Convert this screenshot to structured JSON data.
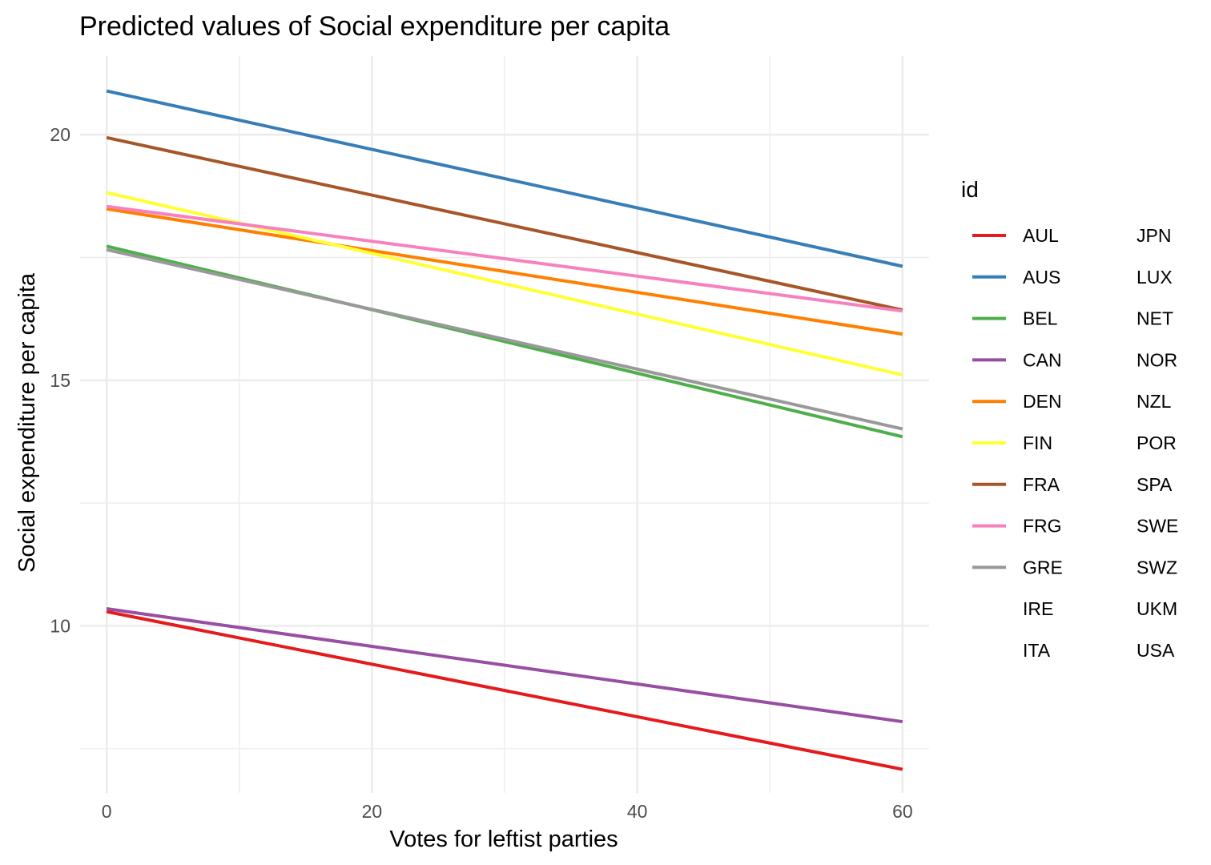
{
  "chart_data": {
    "type": "line",
    "title": "Predicted values of Social expenditure per capita",
    "xlabel": "Votes for leftist parties",
    "ylabel": "Social expenditure per capita",
    "xlim": [
      -2,
      62
    ],
    "ylim": [
      6.6,
      21.6
    ],
    "x_ticks": [
      0,
      20,
      40,
      60
    ],
    "x_tick_labels": [
      "0",
      "20",
      "40",
      "60"
    ],
    "x_minor_ticks": [
      10,
      30,
      50
    ],
    "y_ticks": [
      10,
      15,
      20
    ],
    "y_tick_labels": [
      "10",
      "15",
      "20"
    ],
    "y_minor_ticks": [
      7.5,
      12.5,
      17.5
    ],
    "grid": true,
    "legend": {
      "title": "id",
      "placement": "right",
      "columns": 2,
      "entries": [
        {
          "name": "AUL",
          "color": "#E41A1C",
          "swatch": true
        },
        {
          "name": "AUS",
          "color": "#377EB8",
          "swatch": true
        },
        {
          "name": "BEL",
          "color": "#4DAF4A",
          "swatch": true
        },
        {
          "name": "CAN",
          "color": "#984EA3",
          "swatch": true
        },
        {
          "name": "DEN",
          "color": "#FF7F00",
          "swatch": true
        },
        {
          "name": "FIN",
          "color": "#FFFF33",
          "swatch": true
        },
        {
          "name": "FRA",
          "color": "#A65628",
          "swatch": true
        },
        {
          "name": "FRG",
          "color": "#F781BF",
          "swatch": true
        },
        {
          "name": "GRE",
          "color": "#999999",
          "swatch": true
        },
        {
          "name": "IRE",
          "color": "",
          "swatch": false
        },
        {
          "name": "ITA",
          "color": "",
          "swatch": false
        },
        {
          "name": "JPN",
          "color": "",
          "swatch": false
        },
        {
          "name": "LUX",
          "color": "",
          "swatch": false
        },
        {
          "name": "NET",
          "color": "",
          "swatch": false
        },
        {
          "name": "NOR",
          "color": "",
          "swatch": false
        },
        {
          "name": "NZL",
          "color": "",
          "swatch": false
        },
        {
          "name": "POR",
          "color": "",
          "swatch": false
        },
        {
          "name": "SPA",
          "color": "",
          "swatch": false
        },
        {
          "name": "SWE",
          "color": "",
          "swatch": false
        },
        {
          "name": "SWZ",
          "color": "",
          "swatch": false
        },
        {
          "name": "UKM",
          "color": "",
          "swatch": false
        },
        {
          "name": "USA",
          "color": "",
          "swatch": false
        }
      ]
    },
    "series": [
      {
        "name": "AUL",
        "color": "#E41A1C",
        "x": [
          0,
          60
        ],
        "y": [
          10.29,
          7.08
        ]
      },
      {
        "name": "AUS",
        "color": "#377EB8",
        "x": [
          0,
          60
        ],
        "y": [
          20.89,
          17.32
        ]
      },
      {
        "name": "BEL",
        "color": "#4DAF4A",
        "x": [
          0,
          60
        ],
        "y": [
          17.73,
          13.85
        ]
      },
      {
        "name": "CAN",
        "color": "#984EA3",
        "x": [
          0,
          60
        ],
        "y": [
          10.35,
          8.05
        ]
      },
      {
        "name": "DEN",
        "color": "#FF7F00",
        "x": [
          0,
          60
        ],
        "y": [
          18.49,
          15.94
        ]
      },
      {
        "name": "FIN",
        "color": "#FFFF33",
        "x": [
          0,
          60
        ],
        "y": [
          18.82,
          15.11
        ]
      },
      {
        "name": "FRA",
        "color": "#A65628",
        "x": [
          0,
          60
        ],
        "y": [
          19.94,
          16.43
        ]
      },
      {
        "name": "FRG",
        "color": "#F781BF",
        "x": [
          0,
          60
        ],
        "y": [
          18.54,
          16.41
        ]
      },
      {
        "name": "GRE",
        "color": "#999999",
        "x": [
          0,
          60
        ],
        "y": [
          17.66,
          14.01
        ]
      }
    ]
  }
}
